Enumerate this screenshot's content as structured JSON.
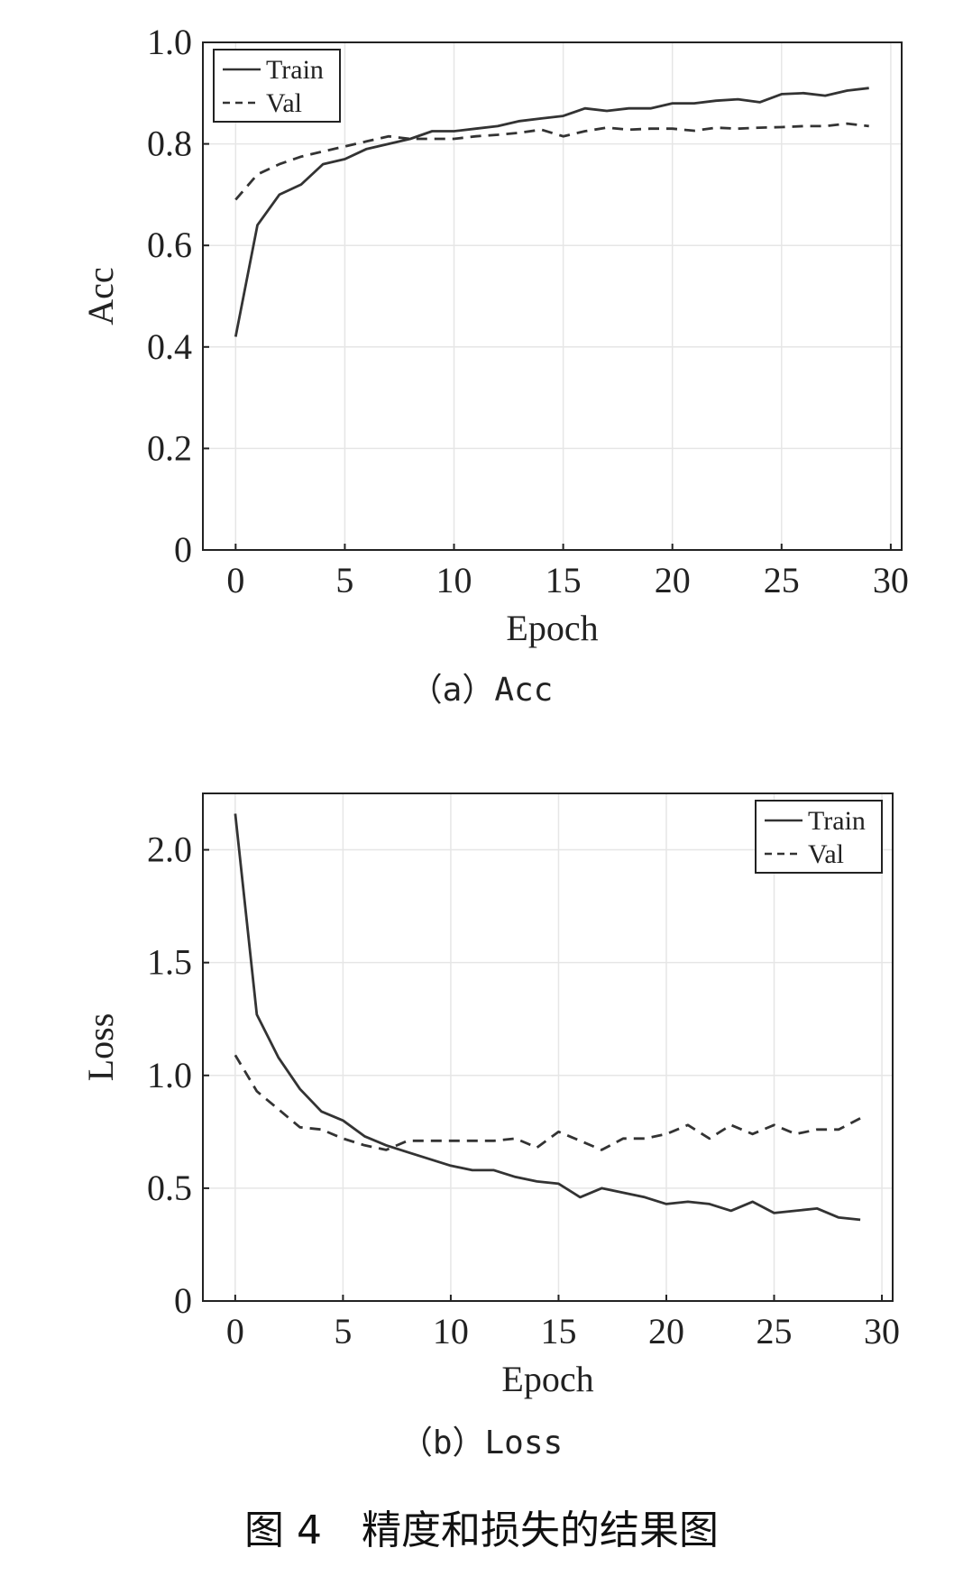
{
  "figure_caption": "图 4　精度和损失的结果图",
  "chart_data": [
    {
      "type": "line",
      "subcaption": "（a）Acc",
      "xlabel": "Epoch",
      "ylabel": "Acc",
      "xlim": [
        -1.5,
        30.5
      ],
      "ylim": [
        0,
        1.0
      ],
      "xticks": [
        0,
        5,
        10,
        15,
        20,
        25,
        30
      ],
      "yticks": [
        0,
        0.2,
        0.4,
        0.6,
        0.8,
        1.0
      ],
      "ytick_labels": [
        "0",
        "0.2",
        "0.4",
        "0.6",
        "0.8",
        "1.0"
      ],
      "grid": true,
      "legend_position": "top-left",
      "x": [
        0,
        1,
        2,
        3,
        4,
        5,
        6,
        7,
        8,
        9,
        10,
        11,
        12,
        13,
        14,
        15,
        16,
        17,
        18,
        19,
        20,
        21,
        22,
        23,
        24,
        25,
        26,
        27,
        28,
        29
      ],
      "series": [
        {
          "name": "Train",
          "style": "solid",
          "values": [
            0.42,
            0.64,
            0.7,
            0.72,
            0.76,
            0.77,
            0.79,
            0.8,
            0.81,
            0.825,
            0.825,
            0.83,
            0.835,
            0.845,
            0.85,
            0.855,
            0.87,
            0.865,
            0.87,
            0.87,
            0.88,
            0.88,
            0.885,
            0.888,
            0.882,
            0.898,
            0.9,
            0.895,
            0.905,
            0.91
          ]
        },
        {
          "name": "Val",
          "style": "dashed",
          "values": [
            0.69,
            0.74,
            0.76,
            0.775,
            0.785,
            0.795,
            0.805,
            0.815,
            0.81,
            0.81,
            0.81,
            0.815,
            0.818,
            0.822,
            0.828,
            0.815,
            0.825,
            0.832,
            0.828,
            0.83,
            0.83,
            0.826,
            0.832,
            0.83,
            0.832,
            0.833,
            0.835,
            0.835,
            0.84,
            0.835
          ]
        }
      ]
    },
    {
      "type": "line",
      "subcaption": "（b）Loss",
      "xlabel": "Epoch",
      "ylabel": "Loss",
      "xlim": [
        -1.5,
        30.5
      ],
      "ylim": [
        0,
        2.25
      ],
      "xticks": [
        0,
        5,
        10,
        15,
        20,
        25,
        30
      ],
      "yticks": [
        0,
        0.5,
        1.0,
        1.5,
        2.0
      ],
      "ytick_labels": [
        "0",
        "0.5",
        "1.0",
        "1.5",
        "2.0"
      ],
      "grid": true,
      "legend_position": "top-right",
      "x": [
        0,
        1,
        2,
        3,
        4,
        5,
        6,
        7,
        8,
        9,
        10,
        11,
        12,
        13,
        14,
        15,
        16,
        17,
        18,
        19,
        20,
        21,
        22,
        23,
        24,
        25,
        26,
        27,
        28,
        29
      ],
      "series": [
        {
          "name": "Train",
          "style": "solid",
          "values": [
            2.16,
            1.27,
            1.08,
            0.94,
            0.84,
            0.8,
            0.73,
            0.69,
            0.66,
            0.63,
            0.6,
            0.58,
            0.58,
            0.55,
            0.53,
            0.52,
            0.46,
            0.5,
            0.48,
            0.46,
            0.43,
            0.44,
            0.43,
            0.4,
            0.44,
            0.39,
            0.4,
            0.41,
            0.37,
            0.36
          ]
        },
        {
          "name": "Val",
          "style": "dashed",
          "values": [
            1.09,
            0.93,
            0.85,
            0.77,
            0.76,
            0.72,
            0.69,
            0.67,
            0.71,
            0.71,
            0.71,
            0.71,
            0.71,
            0.72,
            0.68,
            0.75,
            0.71,
            0.67,
            0.72,
            0.72,
            0.74,
            0.78,
            0.72,
            0.78,
            0.74,
            0.78,
            0.74,
            0.76,
            0.76,
            0.81
          ]
        }
      ]
    }
  ]
}
